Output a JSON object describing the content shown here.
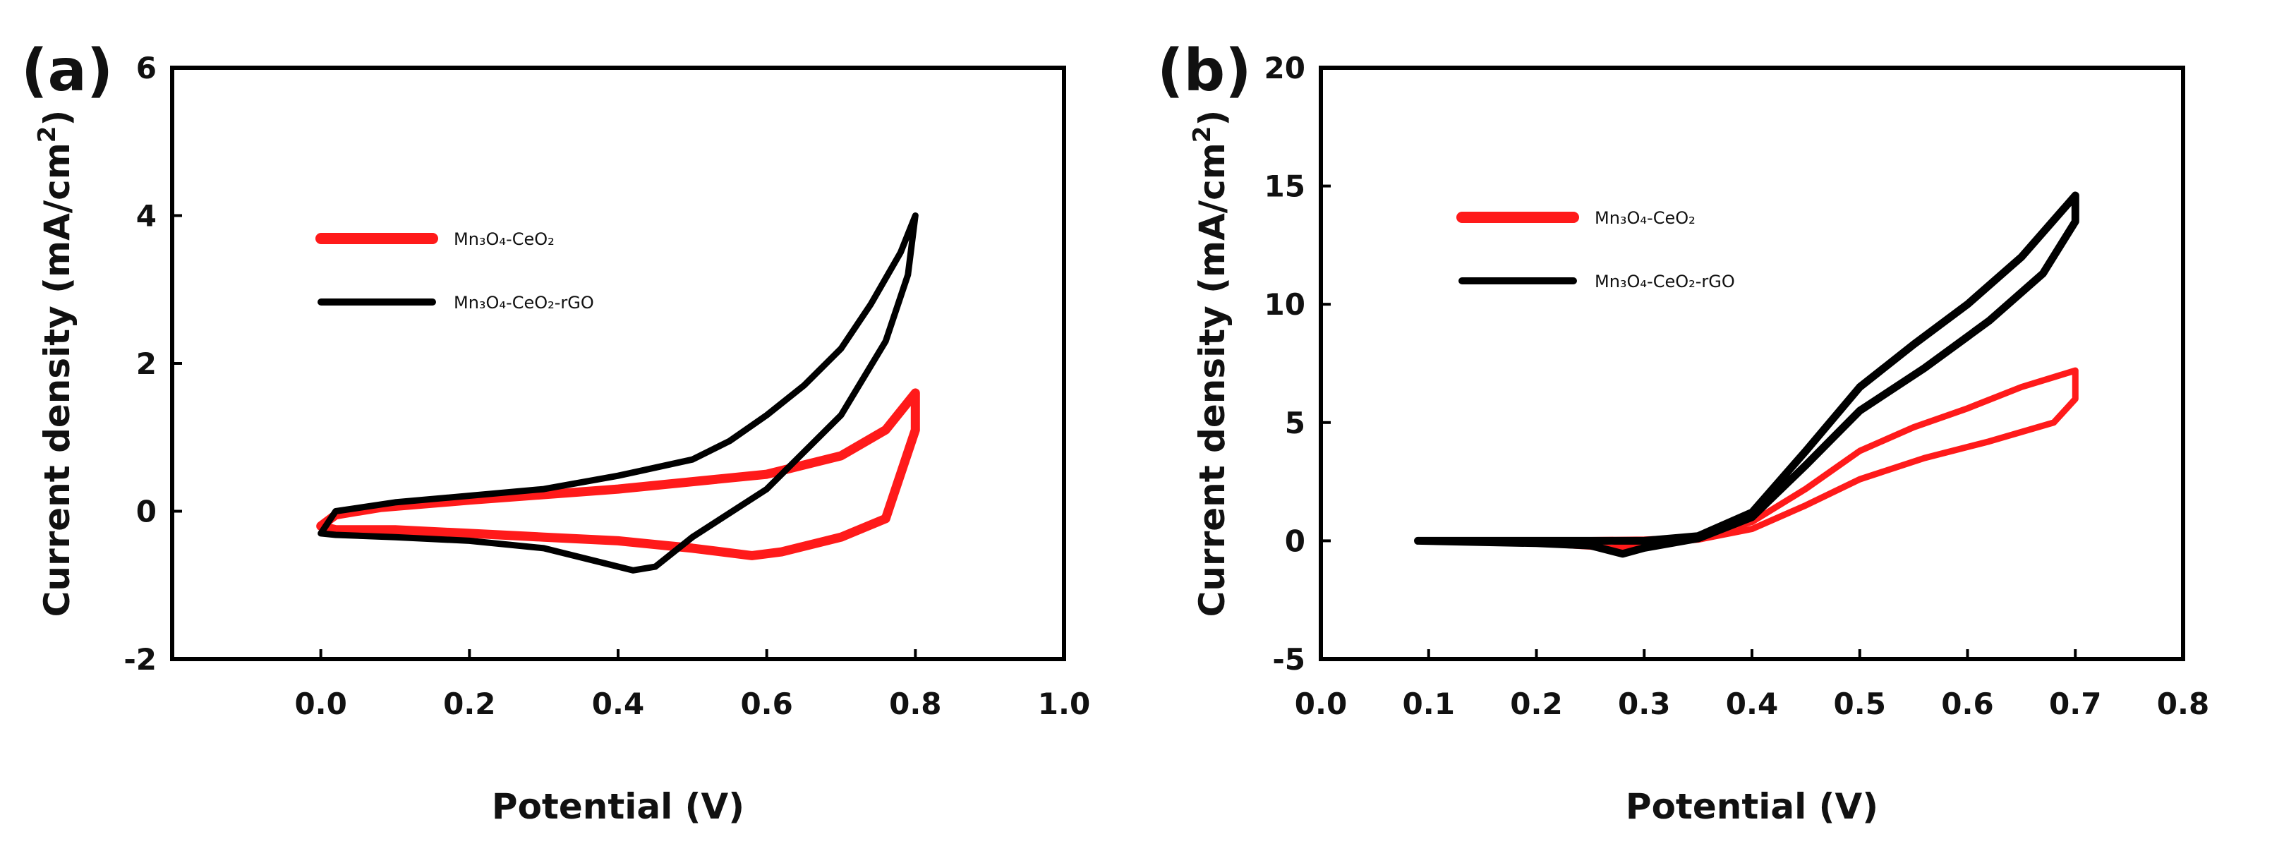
{
  "chart_data": [
    {
      "type": "line",
      "panel_label": "(a)",
      "xlabel": "Potential (V)",
      "ylabel": "Current density (mA/cm",
      "ylabel_sup": "2",
      "ylabel_close": ")",
      "xlim": [
        -0.2,
        1.0
      ],
      "ylim": [
        -2,
        6
      ],
      "xticks": [
        0.0,
        0.2,
        0.4,
        0.6,
        0.8,
        1.0
      ],
      "xtick_labels": [
        "0.0",
        "0.2",
        "0.4",
        "0.6",
        "0.8",
        "1.0"
      ],
      "yticks": [
        -2,
        0,
        2,
        4,
        6
      ],
      "ytick_labels": [
        "-2",
        "0",
        "2",
        "4",
        "6"
      ],
      "legend_position": "upper-left",
      "series": [
        {
          "name": "Mn₃O₄-CeO₂",
          "color": "#ff1a1a",
          "closed": true,
          "points": [
            [
              0.0,
              -0.2
            ],
            [
              0.02,
              -0.05
            ],
            [
              0.08,
              0.05
            ],
            [
              0.2,
              0.15
            ],
            [
              0.4,
              0.3
            ],
            [
              0.6,
              0.5
            ],
            [
              0.7,
              0.75
            ],
            [
              0.76,
              1.1
            ],
            [
              0.8,
              1.6
            ],
            [
              0.8,
              1.1
            ],
            [
              0.76,
              -0.1
            ],
            [
              0.7,
              -0.35
            ],
            [
              0.62,
              -0.55
            ],
            [
              0.58,
              -0.6
            ],
            [
              0.5,
              -0.5
            ],
            [
              0.4,
              -0.4
            ],
            [
              0.3,
              -0.35
            ],
            [
              0.2,
              -0.3
            ],
            [
              0.1,
              -0.25
            ],
            [
              0.02,
              -0.25
            ]
          ]
        },
        {
          "name": "Mn₃O₄-CeO₂-rGO",
          "color": "#000000",
          "closed": true,
          "points": [
            [
              0.0,
              -0.3
            ],
            [
              0.02,
              0.0
            ],
            [
              0.1,
              0.12
            ],
            [
              0.3,
              0.3
            ],
            [
              0.4,
              0.48
            ],
            [
              0.5,
              0.7
            ],
            [
              0.55,
              0.95
            ],
            [
              0.6,
              1.3
            ],
            [
              0.65,
              1.7
            ],
            [
              0.7,
              2.2
            ],
            [
              0.74,
              2.8
            ],
            [
              0.78,
              3.5
            ],
            [
              0.8,
              4.0
            ],
            [
              0.79,
              3.2
            ],
            [
              0.76,
              2.3
            ],
            [
              0.7,
              1.3
            ],
            [
              0.6,
              0.3
            ],
            [
              0.5,
              -0.35
            ],
            [
              0.45,
              -0.75
            ],
            [
              0.42,
              -0.8
            ],
            [
              0.38,
              -0.7
            ],
            [
              0.3,
              -0.5
            ],
            [
              0.2,
              -0.4
            ],
            [
              0.1,
              -0.35
            ],
            [
              0.02,
              -0.32
            ]
          ]
        }
      ]
    },
    {
      "type": "line",
      "panel_label": "(b)",
      "xlabel": "Potential (V)",
      "ylabel": "Current density (mA/cm",
      "ylabel_sup": "2",
      "ylabel_close": ")",
      "xlim": [
        0.0,
        0.8
      ],
      "ylim": [
        -5,
        20
      ],
      "xticks": [
        0.0,
        0.1,
        0.2,
        0.3,
        0.4,
        0.5,
        0.6,
        0.7,
        0.8
      ],
      "xtick_labels": [
        "0.0",
        "0.1",
        "0.2",
        "0.3",
        "0.4",
        "0.5",
        "0.6",
        "0.7",
        "0.8"
      ],
      "yticks": [
        -5,
        0,
        5,
        10,
        15,
        20
      ],
      "ytick_labels": [
        "-5",
        "0",
        "5",
        "10",
        "15",
        "20"
      ],
      "legend_position": "upper-left",
      "series": [
        {
          "name": "Mn₃O₄-CeO₂",
          "color": "#ff1a1a",
          "closed": true,
          "points": [
            [
              0.09,
              0.0
            ],
            [
              0.2,
              0.0
            ],
            [
              0.3,
              0.05
            ],
            [
              0.35,
              0.15
            ],
            [
              0.4,
              0.8
            ],
            [
              0.45,
              2.2
            ],
            [
              0.5,
              3.8
            ],
            [
              0.55,
              4.8
            ],
            [
              0.6,
              5.6
            ],
            [
              0.65,
              6.5
            ],
            [
              0.7,
              7.2
            ],
            [
              0.7,
              6.0
            ],
            [
              0.68,
              5.0
            ],
            [
              0.62,
              4.2
            ],
            [
              0.56,
              3.5
            ],
            [
              0.5,
              2.6
            ],
            [
              0.45,
              1.5
            ],
            [
              0.4,
              0.5
            ],
            [
              0.35,
              0.05
            ],
            [
              0.3,
              -0.15
            ],
            [
              0.27,
              -0.3
            ],
            [
              0.2,
              -0.1
            ],
            [
              0.09,
              0.0
            ]
          ]
        },
        {
          "name": "Mn₃O₄-CeO₂-rGO",
          "color": "#000000",
          "closed": true,
          "points": [
            [
              0.09,
              0.0
            ],
            [
              0.2,
              0.0
            ],
            [
              0.3,
              0.0
            ],
            [
              0.35,
              0.2
            ],
            [
              0.4,
              1.2
            ],
            [
              0.45,
              3.8
            ],
            [
              0.5,
              6.5
            ],
            [
              0.55,
              8.3
            ],
            [
              0.6,
              10.0
            ],
            [
              0.65,
              12.0
            ],
            [
              0.7,
              14.6
            ],
            [
              0.7,
              13.5
            ],
            [
              0.67,
              11.3
            ],
            [
              0.62,
              9.3
            ],
            [
              0.56,
              7.3
            ],
            [
              0.5,
              5.5
            ],
            [
              0.45,
              3.2
            ],
            [
              0.4,
              1.0
            ],
            [
              0.35,
              0.1
            ],
            [
              0.3,
              -0.3
            ],
            [
              0.28,
              -0.55
            ],
            [
              0.25,
              -0.2
            ],
            [
              0.2,
              -0.1
            ],
            [
              0.09,
              0.0
            ]
          ]
        }
      ]
    }
  ]
}
